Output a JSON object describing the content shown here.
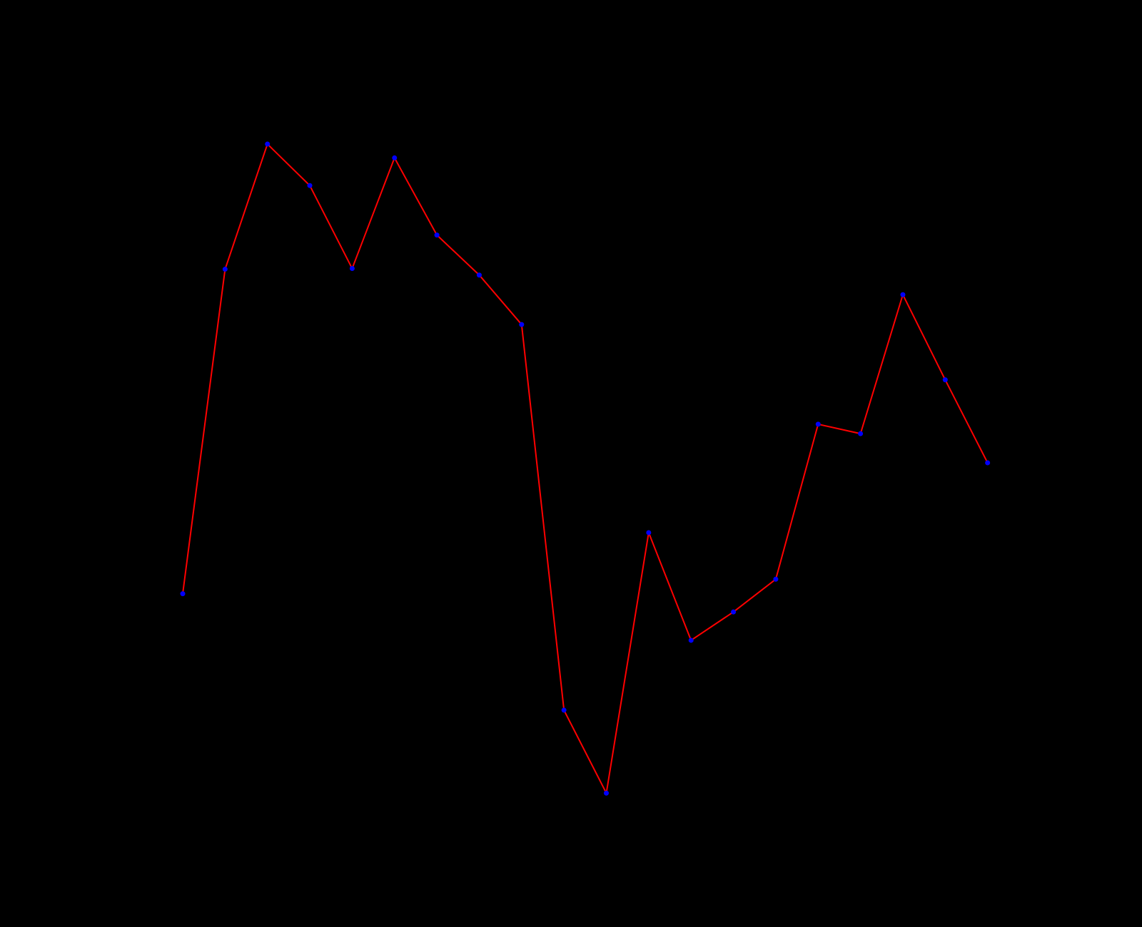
{
  "chart_data": {
    "type": "line",
    "values": [
      458,
      904,
      1076,
      1019,
      905,
      1057,
      951,
      896,
      828,
      298,
      184,
      542,
      394,
      433,
      478,
      691,
      678,
      869,
      752,
      638
    ],
    "ylim": [
      0,
      1274
    ],
    "color": "#ff0000",
    "marker_color": "#0000ff",
    "background": "#000000"
  }
}
